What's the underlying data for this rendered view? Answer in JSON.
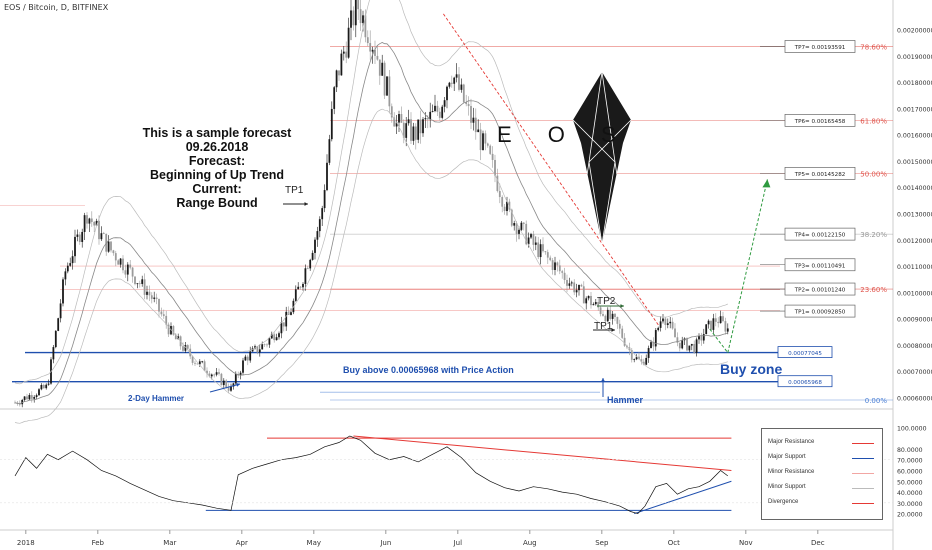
{
  "header": {
    "title": "EOS / Bitcoin, D, BITFINEX"
  },
  "forecast_text": [
    "This is a sample forecast",
    "09.26.2018",
    "Forecast:",
    "Beginning of Up Trend",
    "Current:",
    "Range Bound"
  ],
  "eos_label": "E O S",
  "annotations": {
    "buy_above": "Buy above 0.00065968 with Price Action",
    "buy_zone": "Buy zone",
    "hammer": "Hammer",
    "two_day_hammer": "2-Day Hammer",
    "tp1_left": "TP1",
    "tp1_right": "TP1",
    "tp2_right": "TP2"
  },
  "targets": [
    {
      "label": "TP7= 0.00193591",
      "value": 0.00193591
    },
    {
      "label": "TP6= 0.00165458",
      "value": 0.00165458
    },
    {
      "label": "TP5= 0.00145282",
      "value": 0.00145282
    },
    {
      "label": "TP4= 0.00122150",
      "value": 0.0012215
    },
    {
      "label": "TP3= 0.00110491",
      "value": 0.00110491
    },
    {
      "label": "TP2= 0.00101240",
      "value": 0.0010124
    },
    {
      "label": "TP1= 0.00092850",
      "value": 0.0009285
    }
  ],
  "zone": {
    "upper_label": "0.00077045",
    "upper": 0.00077045,
    "lower_label": "0.00065968",
    "lower": 0.00065968
  },
  "fib_levels": [
    {
      "label": "78.60%",
      "value": 0.00193591,
      "color": "#e0554d"
    },
    {
      "label": "61.80%",
      "value": 0.00165458,
      "color": "#e0554d"
    },
    {
      "label": "50.00%",
      "value": 0.00145282,
      "color": "#e0554d"
    },
    {
      "label": "38.20%",
      "value": 0.0012215,
      "color": "#999999"
    },
    {
      "label": "23.60%",
      "value": 0.0010124,
      "color": "#e0554d"
    },
    {
      "label": "0.00%",
      "value": 0.00059,
      "color": "#4a7fd4"
    }
  ],
  "colors": {
    "resistance": "#e53935",
    "support": "#1f4fae",
    "up_candle": "#222222",
    "projection": "#2e9a3f"
  },
  "legend": [
    {
      "label": "Major Resistance",
      "color": "#e53935"
    },
    {
      "label": "Major Support",
      "color": "#1f4fae"
    },
    {
      "label": "Minor Resistance",
      "color": "#f2a6a3"
    },
    {
      "label": "Minor Support",
      "color": "#bbbbbb"
    },
    {
      "label": "Divergence",
      "color": "#e53935"
    }
  ],
  "chart_data": {
    "type": "candlestick",
    "x_ticks": [
      "2018",
      "Feb",
      "Mar",
      "Apr",
      "May",
      "Jun",
      "Jul",
      "Aug",
      "Sep",
      "Oct",
      "Nov",
      "Dec"
    ],
    "y_ticks": [
      "0.00200000",
      "0.00190000",
      "0.00180000",
      "0.00170000",
      "0.00160000",
      "0.00150000",
      "0.00140000",
      "0.00130000",
      "0.00120000",
      "0.00110000",
      "0.00100000",
      "0.00090000",
      "0.00080000",
      "0.00070000",
      "0.00060000"
    ],
    "ylim": [
      0.00059,
      0.00209
    ],
    "price_path": [
      [
        0,
        0.00058
      ],
      [
        0.15,
        0.0006
      ],
      [
        0.45,
        0.00064
      ],
      [
        0.7,
        0.00108
      ],
      [
        1.0,
        0.0013
      ],
      [
        1.3,
        0.00117
      ],
      [
        1.6,
        0.00108
      ],
      [
        1.9,
        0.00098
      ],
      [
        2.2,
        0.00083
      ],
      [
        2.5,
        0.00074
      ],
      [
        2.8,
        0.00068
      ],
      [
        3.0,
        0.00063
      ],
      [
        3.2,
        0.00075
      ],
      [
        3.5,
        0.00081
      ],
      [
        3.8,
        0.00091
      ],
      [
        4.0,
        0.00106
      ],
      [
        4.25,
        0.00128
      ],
      [
        4.45,
        0.0018
      ],
      [
        4.75,
        0.0021
      ],
      [
        5.0,
        0.00193
      ],
      [
        5.3,
        0.00164
      ],
      [
        5.55,
        0.0016
      ],
      [
        5.9,
        0.0017
      ],
      [
        6.05,
        0.00185
      ],
      [
        6.3,
        0.00168
      ],
      [
        6.6,
        0.0015
      ],
      [
        6.85,
        0.0013
      ],
      [
        7.2,
        0.00118
      ],
      [
        7.5,
        0.0011
      ],
      [
        7.8,
        0.00101
      ],
      [
        8.1,
        0.00094
      ],
      [
        8.35,
        0.00088
      ],
      [
        8.55,
        0.00077
      ],
      [
        8.7,
        0.00073
      ],
      [
        8.85,
        0.0008
      ],
      [
        9.0,
        0.00092
      ],
      [
        9.2,
        0.00081
      ],
      [
        9.45,
        0.00079
      ],
      [
        9.6,
        0.00086
      ],
      [
        9.75,
        0.0009
      ],
      [
        9.9,
        0.00086
      ]
    ],
    "projection": [
      [
        9.9,
        0.00077
      ],
      [
        10.45,
        0.00143
      ]
    ],
    "oscillator": {
      "y_ticks": [
        "100.0000",
        "80.0000",
        "70.0000",
        "60.0000",
        "50.0000",
        "40.0000",
        "30.0000",
        "20.0000"
      ],
      "ylim": [
        15,
        105
      ],
      "values": [
        [
          0,
          55
        ],
        [
          0.15,
          72
        ],
        [
          0.3,
          62
        ],
        [
          0.45,
          75
        ],
        [
          0.6,
          70
        ],
        [
          0.8,
          78
        ],
        [
          1.0,
          70
        ],
        [
          1.2,
          60
        ],
        [
          1.4,
          55
        ],
        [
          1.6,
          48
        ],
        [
          1.8,
          42
        ],
        [
          2.0,
          36
        ],
        [
          2.2,
          32
        ],
        [
          2.4,
          30
        ],
        [
          2.6,
          28
        ],
        [
          2.8,
          25
        ],
        [
          3.0,
          23
        ],
        [
          3.1,
          56
        ],
        [
          3.3,
          62
        ],
        [
          3.5,
          66
        ],
        [
          3.7,
          70
        ],
        [
          3.9,
          72
        ],
        [
          4.1,
          75
        ],
        [
          4.3,
          82
        ],
        [
          4.5,
          86
        ],
        [
          4.65,
          92
        ],
        [
          4.8,
          88
        ],
        [
          5.0,
          76
        ],
        [
          5.2,
          70
        ],
        [
          5.4,
          73
        ],
        [
          5.6,
          68
        ],
        [
          5.8,
          75
        ],
        [
          6.0,
          82
        ],
        [
          6.2,
          72
        ],
        [
          6.4,
          58
        ],
        [
          6.6,
          50
        ],
        [
          6.8,
          44
        ],
        [
          7.0,
          41
        ],
        [
          7.2,
          45
        ],
        [
          7.4,
          43
        ],
        [
          7.6,
          40
        ],
        [
          7.8,
          38
        ],
        [
          8.0,
          34
        ],
        [
          8.2,
          31
        ],
        [
          8.4,
          27
        ],
        [
          8.55,
          22
        ],
        [
          8.65,
          20
        ],
        [
          8.75,
          27
        ],
        [
          8.9,
          45
        ],
        [
          9.05,
          48
        ],
        [
          9.2,
          38
        ],
        [
          9.35,
          43
        ],
        [
          9.5,
          45
        ],
        [
          9.65,
          50
        ],
        [
          9.8,
          60
        ],
        [
          9.9,
          55
        ]
      ],
      "resistance": [
        [
          4.7,
          92
        ],
        [
          9.95,
          60
        ]
      ],
      "support": [
        [
          8.6,
          20
        ],
        [
          9.95,
          50
        ]
      ],
      "top_line": 90,
      "bottom_line": 23
    }
  }
}
